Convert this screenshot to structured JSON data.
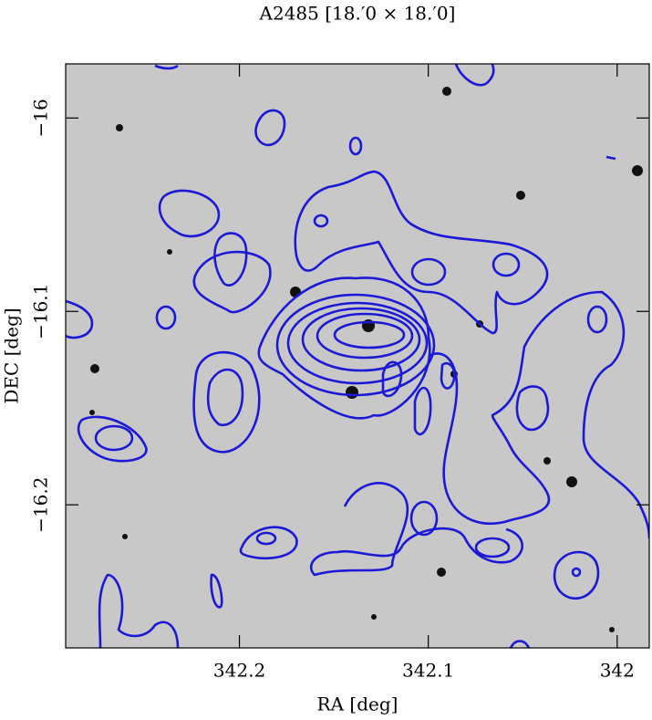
{
  "chart_data": {
    "type": "image",
    "title": "A2485  [18.′0 × 18.′0]",
    "x_label": "RA [deg]",
    "y_label": "DEC [deg]",
    "xlim": [
      342.292,
      341.983
    ],
    "xticks": [
      342.2,
      342.1,
      342
    ],
    "ylim": [
      -16.274,
      -15.972
    ],
    "yticks": [
      {
        "value": -16,
        "label": "−16"
      },
      {
        "value": -16.1,
        "label": "−16.1"
      },
      {
        "value": -16.2,
        "label": "−16.2"
      }
    ],
    "contour_color": "#1a1ad6"
  }
}
